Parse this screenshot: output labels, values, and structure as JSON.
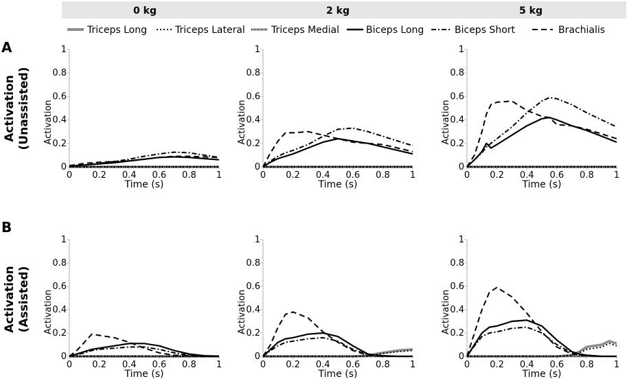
{
  "column_headers": [
    "0 kg",
    "2 kg",
    "5 kg"
  ],
  "row_labels": [
    {
      "letter": "A",
      "line1": "Activation",
      "line2": "(Unassisted)"
    },
    {
      "letter": "B",
      "line1": "Activation",
      "line2": "(Assisted)"
    }
  ],
  "legend": [
    {
      "name": "Triceps Long",
      "style": "thick-gray",
      "color": "#8c8c8c"
    },
    {
      "name": "Triceps Lateral",
      "style": "dotted",
      "color": "#000000"
    },
    {
      "name": "Triceps Medial",
      "style": "hatched",
      "color": "#000000"
    },
    {
      "name": "Biceps Long",
      "style": "solid",
      "color": "#000000"
    },
    {
      "name": "Biceps Short",
      "style": "dashdot",
      "color": "#000000"
    },
    {
      "name": "Brachialis",
      "style": "dashed",
      "color": "#000000"
    }
  ],
  "chart_data": [
    {
      "type": "line",
      "row": "A",
      "column": "0 kg",
      "xlabel": "Time (s)",
      "ylabel": "Activation",
      "xlim": [
        0,
        1
      ],
      "ylim": [
        0,
        1
      ],
      "xticks": [
        "0",
        "0.2",
        "0.4",
        "0.6",
        "0.8",
        "1"
      ],
      "yticks": [
        "0",
        "0.2",
        "0.4",
        "0.6",
        "0.8",
        "1"
      ],
      "x": [
        0,
        0.1,
        0.2,
        0.3,
        0.4,
        0.5,
        0.6,
        0.7,
        0.8,
        0.9,
        1.0
      ],
      "series": [
        {
          "name": "Triceps Long",
          "values": [
            0,
            0,
            0,
            0,
            0,
            0,
            0,
            0,
            0,
            0,
            0
          ]
        },
        {
          "name": "Triceps Lateral",
          "values": [
            0,
            0,
            0,
            0,
            0,
            0,
            0,
            0,
            0,
            0,
            0
          ]
        },
        {
          "name": "Triceps Medial",
          "values": [
            0,
            0,
            0,
            0,
            0,
            0,
            0,
            0,
            0,
            0,
            0
          ]
        },
        {
          "name": "Biceps Long",
          "values": [
            0.005,
            0.015,
            0.025,
            0.035,
            0.05,
            0.065,
            0.08,
            0.085,
            0.08,
            0.07,
            0.06
          ]
        },
        {
          "name": "Biceps Short",
          "values": [
            0.005,
            0.015,
            0.03,
            0.045,
            0.065,
            0.09,
            0.11,
            0.125,
            0.12,
            0.1,
            0.08
          ]
        },
        {
          "name": "Brachialis",
          "values": [
            0.01,
            0.03,
            0.04,
            0.045,
            0.05,
            0.065,
            0.08,
            0.09,
            0.09,
            0.085,
            0.08
          ]
        }
      ]
    },
    {
      "type": "line",
      "row": "A",
      "column": "2 kg",
      "xlabel": "Time (s)",
      "ylabel": "Activation",
      "xlim": [
        0,
        1
      ],
      "ylim": [
        0,
        1
      ],
      "xticks": [
        "0",
        "0.2",
        "0.4",
        "0.6",
        "0.8",
        "1"
      ],
      "yticks": [
        "0",
        "0.2",
        "0.4",
        "0.6",
        "0.8",
        "1"
      ],
      "x": [
        0,
        0.05,
        0.1,
        0.15,
        0.2,
        0.3,
        0.4,
        0.5,
        0.6,
        0.7,
        0.8,
        0.9,
        1.0
      ],
      "series": [
        {
          "name": "Triceps Long",
          "values": [
            0,
            0,
            0,
            0,
            0,
            0,
            0,
            0,
            0,
            0,
            0,
            0,
            0
          ]
        },
        {
          "name": "Triceps Lateral",
          "values": [
            0,
            0,
            0,
            0,
            0,
            0,
            0,
            0,
            0,
            0,
            0,
            0,
            0
          ]
        },
        {
          "name": "Triceps Medial",
          "values": [
            0,
            0,
            0,
            0,
            0,
            0,
            0,
            0,
            0,
            0,
            0,
            0,
            0
          ]
        },
        {
          "name": "Biceps Long",
          "values": [
            0,
            0.04,
            0.07,
            0.09,
            0.11,
            0.16,
            0.21,
            0.24,
            0.22,
            0.2,
            0.17,
            0.14,
            0.11
          ]
        },
        {
          "name": "Biceps Short",
          "values": [
            0,
            0.05,
            0.09,
            0.12,
            0.14,
            0.19,
            0.26,
            0.32,
            0.33,
            0.3,
            0.26,
            0.22,
            0.18
          ]
        },
        {
          "name": "Brachialis",
          "values": [
            0,
            0.12,
            0.22,
            0.29,
            0.29,
            0.3,
            0.27,
            0.24,
            0.21,
            0.2,
            0.19,
            0.16,
            0.13
          ]
        }
      ]
    },
    {
      "type": "line",
      "row": "A",
      "column": "5 kg",
      "xlabel": "Time (s)",
      "ylabel": "Activation",
      "xlim": [
        0,
        1
      ],
      "ylim": [
        0,
        1
      ],
      "xticks": [
        "0",
        "0.2",
        "0.4",
        "0.6",
        "0.8",
        "1"
      ],
      "yticks": [
        "0",
        "0.2",
        "0.4",
        "0.6",
        "0.8",
        "1"
      ],
      "x": [
        0,
        0.05,
        0.1,
        0.13,
        0.16,
        0.2,
        0.3,
        0.4,
        0.5,
        0.55,
        0.6,
        0.7,
        0.8,
        0.9,
        1.0
      ],
      "series": [
        {
          "name": "Triceps Long",
          "values": [
            0,
            0,
            0,
            0,
            0,
            0,
            0,
            0,
            0,
            0,
            0,
            0,
            0,
            0,
            0
          ]
        },
        {
          "name": "Triceps Lateral",
          "values": [
            0,
            0,
            0,
            0,
            0,
            0,
            0,
            0,
            0,
            0,
            0,
            0,
            0,
            0,
            0
          ]
        },
        {
          "name": "Triceps Medial",
          "values": [
            0,
            0,
            0,
            0,
            0,
            0,
            0,
            0,
            0,
            0,
            0,
            0,
            0,
            0,
            0
          ]
        },
        {
          "name": "Biceps Long",
          "values": [
            0,
            0.06,
            0.13,
            0.2,
            0.16,
            0.19,
            0.27,
            0.35,
            0.41,
            0.42,
            0.4,
            0.35,
            0.31,
            0.26,
            0.21
          ]
        },
        {
          "name": "Biceps Short",
          "values": [
            0,
            0.06,
            0.12,
            0.17,
            0.2,
            0.24,
            0.34,
            0.46,
            0.56,
            0.59,
            0.58,
            0.53,
            0.46,
            0.4,
            0.34
          ]
        },
        {
          "name": "Brachialis",
          "values": [
            0,
            0.1,
            0.3,
            0.45,
            0.53,
            0.55,
            0.56,
            0.48,
            0.43,
            0.42,
            0.36,
            0.35,
            0.32,
            0.28,
            0.24
          ]
        }
      ]
    },
    {
      "type": "line",
      "row": "B",
      "column": "0 kg",
      "xlabel": "Time (s)",
      "ylabel": "Activation",
      "xlim": [
        0,
        1
      ],
      "ylim": [
        0,
        1
      ],
      "xticks": [
        "0",
        "0.2",
        "0.4",
        "0.6",
        "0.8",
        "1"
      ],
      "yticks": [
        "0",
        "0.2",
        "0.4",
        "0.6",
        "0.8",
        "1"
      ],
      "x": [
        0,
        0.05,
        0.1,
        0.15,
        0.2,
        0.3,
        0.4,
        0.5,
        0.6,
        0.7,
        0.8,
        0.9,
        1.0
      ],
      "series": [
        {
          "name": "Triceps Long",
          "values": [
            0,
            0,
            0,
            0,
            0,
            0,
            0,
            0,
            0,
            0,
            0,
            0,
            0
          ]
        },
        {
          "name": "Triceps Lateral",
          "values": [
            0,
            0,
            0,
            0,
            0,
            0,
            0,
            0,
            0,
            0,
            0,
            0,
            0
          ]
        },
        {
          "name": "Triceps Medial",
          "values": [
            0,
            0,
            0,
            0,
            0,
            0,
            0,
            0,
            0,
            0,
            0,
            0,
            0
          ]
        },
        {
          "name": "Biceps Long",
          "values": [
            0,
            0.02,
            0.04,
            0.06,
            0.07,
            0.09,
            0.11,
            0.11,
            0.09,
            0.05,
            0.02,
            0.005,
            0
          ]
        },
        {
          "name": "Biceps Short",
          "values": [
            0,
            0.015,
            0.03,
            0.05,
            0.06,
            0.07,
            0.08,
            0.08,
            0.06,
            0.03,
            0.01,
            0,
            0
          ]
        },
        {
          "name": "Brachialis",
          "values": [
            0,
            0.05,
            0.12,
            0.19,
            0.18,
            0.16,
            0.12,
            0.07,
            0.03,
            0.01,
            0.005,
            0,
            0
          ]
        }
      ]
    },
    {
      "type": "line",
      "row": "B",
      "column": "2 kg",
      "xlabel": "Time (s)",
      "ylabel": "Activation",
      "xlim": [
        0,
        1
      ],
      "ylim": [
        0,
        1
      ],
      "xticks": [
        "0",
        "0.2",
        "0.4",
        "0.6",
        "0.8",
        "1"
      ],
      "yticks": [
        "0",
        "0.2",
        "0.4",
        "0.6",
        "0.8",
        "1"
      ],
      "x": [
        0,
        0.05,
        0.1,
        0.15,
        0.2,
        0.3,
        0.4,
        0.5,
        0.6,
        0.7,
        0.75,
        0.8,
        0.9,
        1.0
      ],
      "series": [
        {
          "name": "Triceps Long",
          "values": [
            0,
            0,
            0,
            0,
            0,
            0,
            0,
            0,
            0,
            0.005,
            0.02,
            0.03,
            0.05,
            0.06
          ]
        },
        {
          "name": "Triceps Lateral",
          "values": [
            0,
            0,
            0,
            0,
            0,
            0,
            0,
            0,
            0,
            0.005,
            0.015,
            0.025,
            0.04,
            0.05
          ]
        },
        {
          "name": "Triceps Medial",
          "values": [
            0,
            0,
            0,
            0,
            0,
            0,
            0,
            0,
            0,
            0,
            0,
            0,
            0,
            0
          ]
        },
        {
          "name": "Biceps Long",
          "values": [
            0,
            0.06,
            0.12,
            0.15,
            0.16,
            0.19,
            0.2,
            0.17,
            0.09,
            0.02,
            0.01,
            0.005,
            0,
            0
          ]
        },
        {
          "name": "Biceps Short",
          "values": [
            0,
            0.05,
            0.09,
            0.12,
            0.13,
            0.15,
            0.16,
            0.13,
            0.06,
            0.015,
            0.005,
            0,
            0,
            0
          ]
        },
        {
          "name": "Brachialis",
          "values": [
            0,
            0.1,
            0.25,
            0.36,
            0.38,
            0.33,
            0.21,
            0.12,
            0.05,
            0.01,
            0.005,
            0,
            0,
            0
          ]
        }
      ]
    },
    {
      "type": "line",
      "row": "B",
      "column": "5 kg",
      "xlabel": "Time (s)",
      "ylabel": "Activation",
      "xlim": [
        0,
        1
      ],
      "ylim": [
        0,
        1
      ],
      "xticks": [
        "0",
        "0.2",
        "0.4",
        "0.6",
        "0.8",
        "1"
      ],
      "yticks": [
        "0",
        "0.2",
        "0.4",
        "0.6",
        "0.8",
        "1"
      ],
      "x": [
        0,
        0.05,
        0.1,
        0.15,
        0.2,
        0.3,
        0.4,
        0.5,
        0.6,
        0.7,
        0.75,
        0.8,
        0.9,
        0.95,
        1.0
      ],
      "series": [
        {
          "name": "Triceps Long",
          "values": [
            0,
            0,
            0,
            0,
            0,
            0,
            0,
            0,
            0,
            0.01,
            0.04,
            0.08,
            0.1,
            0.13,
            0.11
          ]
        },
        {
          "name": "Triceps Lateral",
          "values": [
            0,
            0,
            0,
            0,
            0,
            0,
            0,
            0,
            0,
            0.01,
            0.03,
            0.06,
            0.08,
            0.11,
            0.09
          ]
        },
        {
          "name": "Triceps Medial",
          "values": [
            0,
            0,
            0,
            0,
            0,
            0,
            0,
            0,
            0,
            0,
            0,
            0,
            0,
            0,
            0
          ]
        },
        {
          "name": "Biceps Long",
          "values": [
            0,
            0.1,
            0.2,
            0.25,
            0.26,
            0.3,
            0.31,
            0.26,
            0.14,
            0.04,
            0.02,
            0.01,
            0,
            0,
            0
          ]
        },
        {
          "name": "Biceps Short",
          "values": [
            0,
            0.09,
            0.17,
            0.2,
            0.21,
            0.24,
            0.25,
            0.2,
            0.1,
            0.03,
            0.01,
            0.005,
            0,
            0,
            0
          ]
        },
        {
          "name": "Brachialis",
          "values": [
            0,
            0.2,
            0.4,
            0.55,
            0.59,
            0.51,
            0.37,
            0.21,
            0.08,
            0.02,
            0.01,
            0.005,
            0,
            0,
            0
          ]
        }
      ]
    }
  ]
}
